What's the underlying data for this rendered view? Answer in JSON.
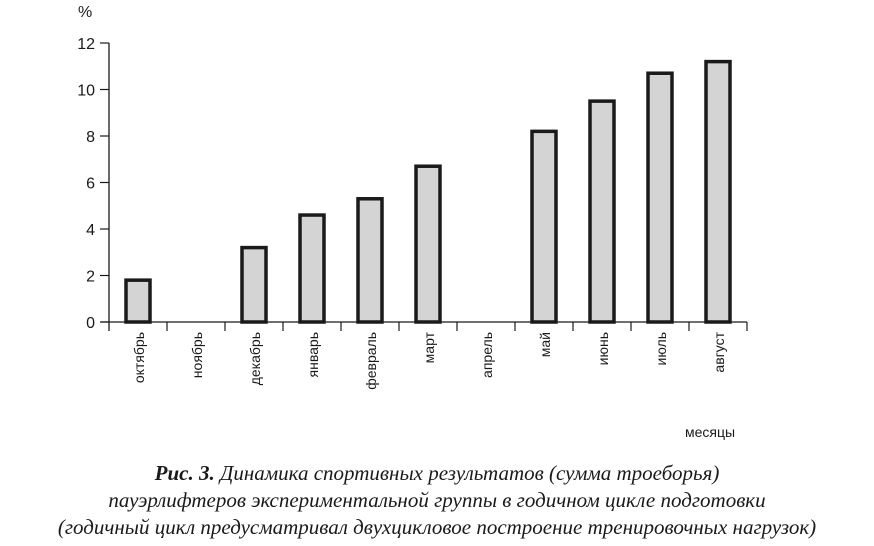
{
  "chart_data": {
    "type": "bar",
    "title": "Рис. 3. Динамика спортивных результатов (сумма троеборья) пауэрлифтеров экспериментальной группы в годичном цикле подготовки (годичный цикл предусматривал двухцикловое построение тренировочных нагрузок)",
    "xlabel": "месяцы",
    "ylabel": "%",
    "ylim": [
      0,
      12
    ],
    "yticks": [
      0,
      2,
      4,
      6,
      8,
      10,
      12
    ],
    "grid": false,
    "legend": null,
    "categories": [
      "октябрь",
      "ноябрь",
      "декабрь",
      "январь",
      "февраль",
      "март",
      "апрель",
      "май",
      "июнь",
      "июль",
      "август"
    ],
    "values": [
      1.8,
      0,
      3.2,
      4.6,
      5.3,
      6.7,
      0,
      8.2,
      9.5,
      10.7,
      11.2
    ],
    "bar_fill": "#d4d4d4",
    "bar_stroke": "#1a1a1a"
  },
  "caption": {
    "prefix": "Рис. 3.",
    "line1": " Динамика спортивных результатов (сумма троеборья)",
    "line2": "пауэрлифтеров экспериментальной группы  в годичном цикле подготовки",
    "line3": "(годичный цикл предусматривал двухцикловое построение тренировочных нагрузок)"
  }
}
